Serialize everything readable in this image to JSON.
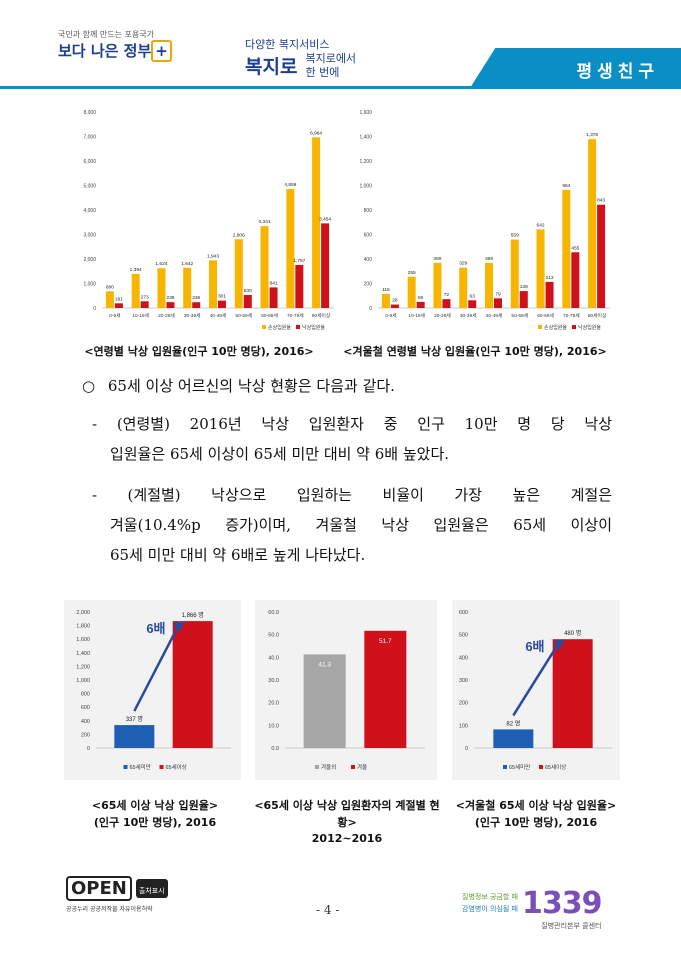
{
  "header": {
    "gov_small": "국민과 함께 만드는 포용국가",
    "gov_logo": "보다 나은 정부",
    "bokjiro_small": "다양한 복지서비스",
    "bokjiro_logo": "복지로",
    "bokjiro_sub1": "복지로에서",
    "bokjiro_sub2": "한 번에",
    "band_title": "평생친구"
  },
  "captions": {
    "top_left": "<연령별 낙상 입원율(인구 10만 명당), 2016>",
    "top_right": "<겨울철 연령별 낙상 입원율(인구 10만 명당), 2016>",
    "bottom_left_1": "<65세 이상 낙상 입원율>",
    "bottom_left_2": "(인구 10만 명당), 2016",
    "bottom_mid_1": "<65세 이상 낙상 입원환자의 계절별 현황>",
    "bottom_mid_2": "2012~2016",
    "bottom_right_1": "<겨울철 65세 이상 낙상 입원율>",
    "bottom_right_2": "(인구 10만 명당), 2016"
  },
  "body": {
    "bullet": "○",
    "line1": "65세 이상 어르신의 낙상 현황은 다음과 같다.",
    "p1a": "- (연령별) 2016년 낙상 입원환자 중 인구 10만 명 당 낙상",
    "p1b": "입원율은 65세 이상이 65세 미만 대비 약 6배 높았다.",
    "p2a": "- (계절별) 낙상으로 입원하는 비율이 가장 높은 계절은",
    "p2b": "겨울(10.4%p 증가)이며, 겨울철 낙상 입원율은 65세 이상이",
    "p2c": "65세 미만 대비 약 6배로 높게 나타났다."
  },
  "footer": {
    "open_logo": "OPEN",
    "open_badge": "출처표시",
    "open_sub": "공공누리 공공저작물 자유이용허락",
    "page": "- 4 -",
    "kcdc_line1": "질병정보 궁금할 때",
    "kcdc_line2": "감염병이 의심될 때",
    "kcdc_number": "1339",
    "kcdc_center": "질병관리본부 콜센터"
  },
  "chart_data": [
    {
      "type": "bar",
      "categories": [
        "0-9세",
        "10-19세",
        "20-29세",
        "30-39세",
        "40-49세",
        "50-59세",
        "60-69세",
        "70-79세",
        "80세이상"
      ],
      "series": [
        {
          "name": "손상입원율",
          "color": "#f7b500",
          "values": [
            680,
            1394,
            1624,
            1642,
            1943,
            2806,
            3341,
            4859,
            6964
          ]
        },
        {
          "name": "낙상입원율",
          "color": "#d0101b",
          "values": [
            191,
            273,
            239,
            236,
            301,
            530,
            841,
            1757,
            3454
          ]
        }
      ],
      "yticks": [
        "0",
        "1,000",
        "2,000",
        "3,000",
        "4,000",
        "5,000",
        "6,000",
        "7,000",
        "8,000"
      ],
      "value_labels": [
        [
          "680",
          "1,394",
          "1,624",
          "1,642",
          "1,943",
          "2,806",
          "3,341",
          "4,859",
          "6,964"
        ],
        [
          "191",
          "273",
          "239",
          "236",
          "301",
          "530",
          "841",
          "1,757",
          "3,454"
        ]
      ],
      "ylim": [
        0,
        8000
      ]
    },
    {
      "type": "bar",
      "categories": [
        "0-9세",
        "10-19세",
        "20-29세",
        "30-39세",
        "40-49세",
        "50-59세",
        "60-69세",
        "70-79세",
        "80세이상"
      ],
      "series": [
        {
          "name": "손상입원율",
          "color": "#f7b500",
          "values": [
            115,
            255,
            369,
            329,
            368,
            559,
            642,
            964,
            1378
          ]
        },
        {
          "name": "낙상입원율",
          "color": "#d0101b",
          "values": [
            28,
            50,
            72,
            63,
            79,
            138,
            213,
            455,
            843
          ]
        }
      ],
      "yticks": [
        "0",
        "200",
        "400",
        "600",
        "800",
        "1,000",
        "1,200",
        "1,400",
        "1,600"
      ],
      "value_labels": [
        [
          "115",
          "255",
          "369",
          "329",
          "368",
          "559",
          "642",
          "964",
          "1,378"
        ],
        [
          "28",
          "50",
          "72",
          "63",
          "79",
          "138",
          "213",
          "455",
          "843"
        ]
      ],
      "ylim": [
        0,
        1600
      ]
    },
    {
      "type": "bar",
      "categories": [
        "65세미만",
        "65세이상"
      ],
      "series": [
        {
          "name": "낙상 입원율",
          "values": [
            337,
            1866
          ],
          "colors": [
            "#1e5eb3",
            "#d0101b"
          ]
        }
      ],
      "value_labels": [
        "337 명",
        "1,866 명"
      ],
      "annotation": "6배",
      "yticks": [
        "0",
        "200",
        "400",
        "600",
        "800",
        "1,000",
        "1,200",
        "1,400",
        "1,600",
        "1,800",
        "2,000"
      ],
      "ylim": [
        0,
        2000
      ]
    },
    {
      "type": "bar",
      "categories": [
        "겨울외",
        "겨울"
      ],
      "series": [
        {
          "name": "계절별 비율",
          "values": [
            41.3,
            51.7
          ],
          "colors": [
            "#a6a6a6",
            "#d0101b"
          ]
        }
      ],
      "value_labels": [
        "41.3",
        "51.7"
      ],
      "yticks": [
        "0.0",
        "10.0",
        "20.0",
        "30.0",
        "40.0",
        "50.0",
        "60.0"
      ],
      "ylim": [
        0,
        60
      ]
    },
    {
      "type": "bar",
      "categories": [
        "65세미만",
        "65세이상"
      ],
      "series": [
        {
          "name": "겨울철 낙상 입원율",
          "values": [
            82,
            480
          ],
          "colors": [
            "#1e5eb3",
            "#d0101b"
          ]
        }
      ],
      "value_labels": [
        "82 명",
        "480 명"
      ],
      "annotation": "6배",
      "yticks": [
        "0",
        "100",
        "200",
        "300",
        "400",
        "500",
        "600"
      ],
      "ylim": [
        0,
        600
      ]
    }
  ]
}
